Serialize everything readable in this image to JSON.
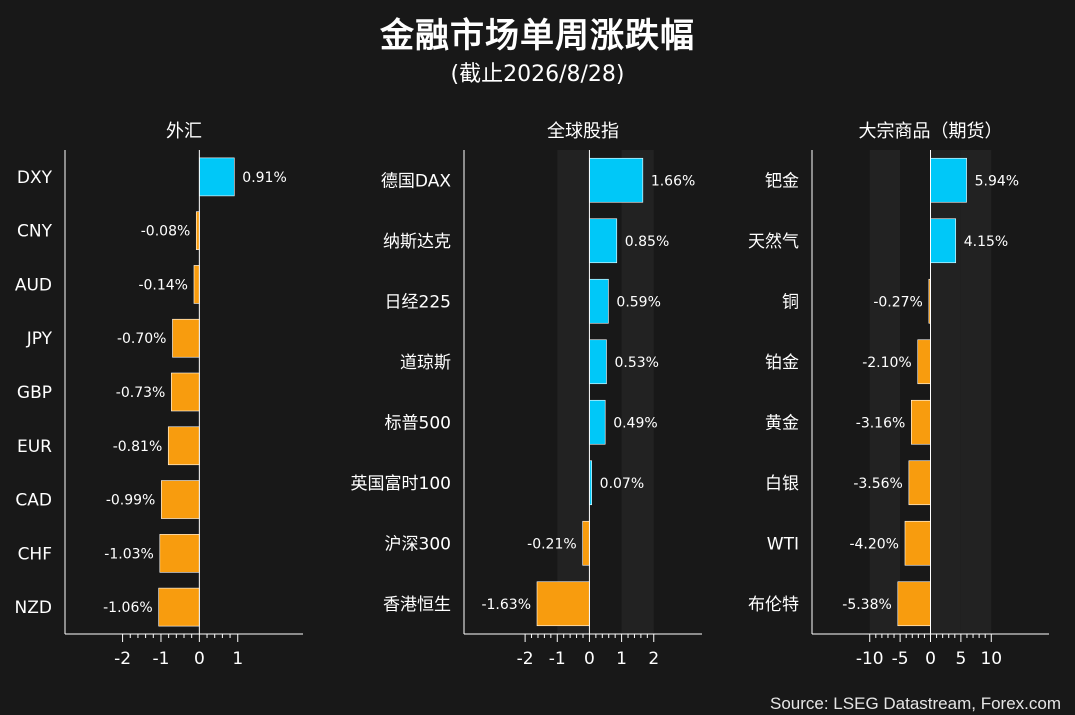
{
  "header": {
    "title": "金融市场单周涨跌幅",
    "subtitle": "(截止2026/8/28)"
  },
  "footer": {
    "source": "Source: LSEG Datastream, Forex.com"
  },
  "colors": {
    "background": "#181818",
    "positive": "#00c8f8",
    "negative": "#f89c0e",
    "band": "#222222",
    "axis": "#ffffff",
    "bar_edge": "#ffffff"
  },
  "chart_data": [
    {
      "type": "bar",
      "orientation": "horizontal",
      "title": "外汇",
      "categories": [
        "DXY",
        "CNY",
        "AUD",
        "JPY",
        "GBP",
        "EUR",
        "CAD",
        "CHF",
        "NZD"
      ],
      "values": [
        0.91,
        -0.08,
        -0.14,
        -0.7,
        -0.73,
        -0.81,
        -0.99,
        -1.03,
        -1.06
      ],
      "value_labels": [
        "0.91%",
        "-0.08%",
        "-0.14%",
        "-0.70%",
        "-0.73%",
        "-0.81%",
        "-0.99%",
        "-1.03%",
        "-1.06%"
      ],
      "xlim": [
        -3.5,
        2.7
      ],
      "xticks": [
        -2,
        -1,
        0,
        1
      ],
      "bands": [],
      "grid": false
    },
    {
      "type": "bar",
      "orientation": "horizontal",
      "title": "全球股指",
      "categories": [
        "德国DAX",
        "纳斯达克",
        "日经225",
        "道琼斯",
        "标普500",
        "英国富时100",
        "沪深300",
        "香港恒生"
      ],
      "values": [
        1.66,
        0.85,
        0.59,
        0.53,
        0.49,
        0.07,
        -0.21,
        -1.63
      ],
      "value_labels": [
        "1.66%",
        "0.85%",
        "0.59%",
        "0.53%",
        "0.49%",
        "0.07%",
        "-0.21%",
        "-1.63%"
      ],
      "xlim": [
        -3.9,
        3.5
      ],
      "xticks": [
        -2,
        -1,
        0,
        1,
        2
      ],
      "bands": [
        [
          -1,
          0
        ],
        [
          1,
          2
        ]
      ],
      "grid": false
    },
    {
      "type": "bar",
      "orientation": "horizontal",
      "title": "大宗商品（期货）",
      "categories": [
        "钯金",
        "天然气",
        "铜",
        "铂金",
        "黄金",
        "白银",
        "WTI",
        "布伦特"
      ],
      "values": [
        5.94,
        4.15,
        -0.27,
        -2.1,
        -3.16,
        -3.56,
        -4.2,
        -5.38
      ],
      "value_labels": [
        "5.94%",
        "4.15%",
        "-0.27%",
        "-2.10%",
        "-3.16%",
        "-3.56%",
        "-4.20%",
        "-5.38%"
      ],
      "xlim": [
        -19.5,
        19.5
      ],
      "xticks": [
        -10,
        -5,
        0,
        5,
        10
      ],
      "bands": [
        [
          -10,
          -5
        ],
        [
          0,
          5
        ],
        [
          5,
          10
        ]
      ],
      "grid": false
    }
  ]
}
